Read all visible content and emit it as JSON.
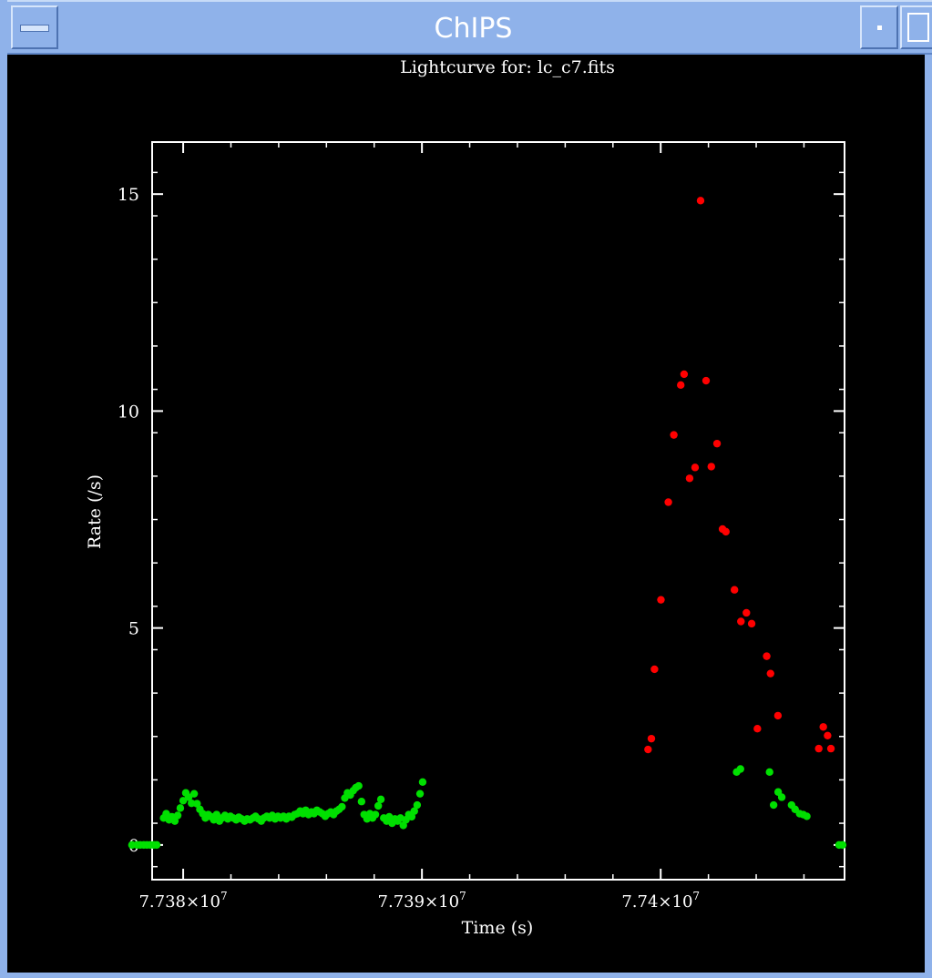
{
  "window": {
    "title": "ChIPS"
  },
  "chart_data": {
    "type": "scatter",
    "title": "Lightcurve for: lc_c7.fits",
    "xlabel": "Time (s)",
    "ylabel": "Rate (/s)",
    "x_unit_scale": 10000000,
    "xlim": [
      77378700.0,
      77407700.0
    ],
    "ylim": [
      -0.8,
      16.2
    ],
    "x_ticks": [
      {
        "value": 77380000.0,
        "mantissa": "7.738",
        "exp": "7"
      },
      {
        "value": 77390000.0,
        "mantissa": "7.739",
        "exp": "7"
      },
      {
        "value": 77400000.0,
        "mantissa": "7.74",
        "exp": "7"
      }
    ],
    "y_ticks": [
      {
        "value": 0,
        "label": "0"
      },
      {
        "value": 5,
        "label": "5"
      },
      {
        "value": 10,
        "label": "10"
      },
      {
        "value": 15,
        "label": "15"
      }
    ],
    "grid": false,
    "series": [
      {
        "color": "#00e000",
        "points": [
          [
            77377855.0,
            0
          ],
          [
            77378060.0,
            0
          ],
          [
            77378200.0,
            0
          ],
          [
            77378350.0,
            0
          ],
          [
            77378480.0,
            0
          ],
          [
            77378620.0,
            0
          ],
          [
            77378760.0,
            0
          ],
          [
            77378890.0,
            0
          ],
          [
            77379180.0,
            0.62
          ],
          [
            77379290.0,
            0.72
          ],
          [
            77379410.0,
            0.58
          ],
          [
            77379530.0,
            0.65
          ],
          [
            77379650.0,
            0.55
          ],
          [
            77379770.0,
            0.68
          ],
          [
            77379880.0,
            0.85
          ],
          [
            77380000.0,
            1.02
          ],
          [
            77380110.0,
            1.2
          ],
          [
            77380230.0,
            1.1
          ],
          [
            77380350.0,
            0.96
          ],
          [
            77380460.0,
            1.18
          ],
          [
            77380580.0,
            0.95
          ],
          [
            77380700.0,
            0.82
          ],
          [
            77380820.0,
            0.72
          ],
          [
            77380930.0,
            0.62
          ],
          [
            77381050.0,
            0.7
          ],
          [
            77381170.0,
            0.65
          ],
          [
            77381280.0,
            0.58
          ],
          [
            77381400.0,
            0.7
          ],
          [
            77381520.0,
            0.55
          ],
          [
            77381630.0,
            0.62
          ],
          [
            77381750.0,
            0.68
          ],
          [
            77381870.0,
            0.6
          ],
          [
            77381980.0,
            0.66
          ],
          [
            77382100.0,
            0.62
          ],
          [
            77382220.0,
            0.58
          ],
          [
            77382330.0,
            0.64
          ],
          [
            77382450.0,
            0.6
          ],
          [
            77382570.0,
            0.55
          ],
          [
            77382680.0,
            0.6
          ],
          [
            77382800.0,
            0.58
          ],
          [
            77382920.0,
            0.62
          ],
          [
            77383030.0,
            0.66
          ],
          [
            77383150.0,
            0.6
          ],
          [
            77383270.0,
            0.55
          ],
          [
            77383380.0,
            0.62
          ],
          [
            77383500.0,
            0.66
          ],
          [
            77383620.0,
            0.62
          ],
          [
            77383730.0,
            0.68
          ],
          [
            77383850.0,
            0.6
          ],
          [
            77383970.0,
            0.66
          ],
          [
            77384080.0,
            0.62
          ],
          [
            77384200.0,
            0.66
          ],
          [
            77384320.0,
            0.6
          ],
          [
            77384430.0,
            0.66
          ],
          [
            77384550.0,
            0.64
          ],
          [
            77384670.0,
            0.7
          ],
          [
            77384780.0,
            0.72
          ],
          [
            77384900.0,
            0.78
          ],
          [
            77385020.0,
            0.72
          ],
          [
            77385130.0,
            0.8
          ],
          [
            77385250.0,
            0.7
          ],
          [
            77385370.0,
            0.76
          ],
          [
            77385480.0,
            0.72
          ],
          [
            77385600.0,
            0.8
          ],
          [
            77385720.0,
            0.76
          ],
          [
            77385830.0,
            0.72
          ],
          [
            77385950.0,
            0.66
          ],
          [
            77386070.0,
            0.72
          ],
          [
            77386180.0,
            0.76
          ],
          [
            77386300.0,
            0.7
          ],
          [
            77386420.0,
            0.78
          ],
          [
            77386530.0,
            0.82
          ],
          [
            77386650.0,
            0.88
          ],
          [
            77386770.0,
            1.08
          ],
          [
            77386880.0,
            1.2
          ],
          [
            77387000.0,
            1.15
          ],
          [
            77387120.0,
            1.25
          ],
          [
            77387230.0,
            1.32
          ],
          [
            77387350.0,
            1.36
          ],
          [
            77387470.0,
            1.0
          ],
          [
            77387580.0,
            0.7
          ],
          [
            77387700.0,
            0.6
          ],
          [
            77387820.0,
            0.72
          ],
          [
            77387930.0,
            0.62
          ],
          [
            77388050.0,
            0.7
          ],
          [
            77388170.0,
            0.9
          ],
          [
            77388280.0,
            1.05
          ],
          [
            77388400.0,
            0.62
          ],
          [
            77388520.0,
            0.55
          ],
          [
            77388630.0,
            0.65
          ],
          [
            77388750.0,
            0.5
          ],
          [
            77388870.0,
            0.6
          ],
          [
            77388980.0,
            0.55
          ],
          [
            77389100.0,
            0.62
          ],
          [
            77389220.0,
            0.45
          ],
          [
            77389330.0,
            0.58
          ],
          [
            77389450.0,
            0.7
          ],
          [
            77389570.0,
            0.65
          ],
          [
            77389680.0,
            0.78
          ],
          [
            77389800.0,
            0.92
          ],
          [
            77389920.0,
            1.18
          ],
          [
            77390030.0,
            1.45
          ],
          [
            77403180.0,
            1.68
          ],
          [
            77403340.0,
            1.75
          ],
          [
            77404560.0,
            1.68
          ],
          [
            77404730.0,
            0.92
          ],
          [
            77404920.0,
            1.22
          ],
          [
            77405070.0,
            1.1
          ],
          [
            77405480.0,
            0.92
          ],
          [
            77405630.0,
            0.82
          ],
          [
            77405820.0,
            0.72
          ],
          [
            77405970.0,
            0.7
          ],
          [
            77406120.0,
            0.66
          ],
          [
            77407470.0,
            0
          ],
          [
            77407620.0,
            0
          ]
        ]
      },
      {
        "color": "#ff0000",
        "points": [
          [
            77399470.0,
            2.2
          ],
          [
            77399610.0,
            2.45
          ],
          [
            77399740.0,
            4.05
          ],
          [
            77400010.0,
            5.65
          ],
          [
            77400320.0,
            7.9
          ],
          [
            77400550.0,
            9.45
          ],
          [
            77400840.0,
            10.6
          ],
          [
            77400980.0,
            10.85
          ],
          [
            77401210.0,
            8.45
          ],
          [
            77401440.0,
            8.7
          ],
          [
            77401670.0,
            14.85
          ],
          [
            77401900.0,
            10.7
          ],
          [
            77402120.0,
            8.72
          ],
          [
            77402360.0,
            9.25
          ],
          [
            77402590.0,
            7.28
          ],
          [
            77402730.0,
            7.22
          ],
          [
            77403090.0,
            5.88
          ],
          [
            77403360.0,
            5.15
          ],
          [
            77403590.0,
            5.35
          ],
          [
            77403810.0,
            5.1
          ],
          [
            77404050.0,
            2.68
          ],
          [
            77404440.0,
            4.35
          ],
          [
            77404600.0,
            3.95
          ],
          [
            77404910.0,
            2.98
          ],
          [
            77406620.0,
            2.22
          ],
          [
            77406810.0,
            2.72
          ],
          [
            77406990.0,
            2.52
          ],
          [
            77407130.0,
            2.22
          ]
        ]
      }
    ]
  }
}
